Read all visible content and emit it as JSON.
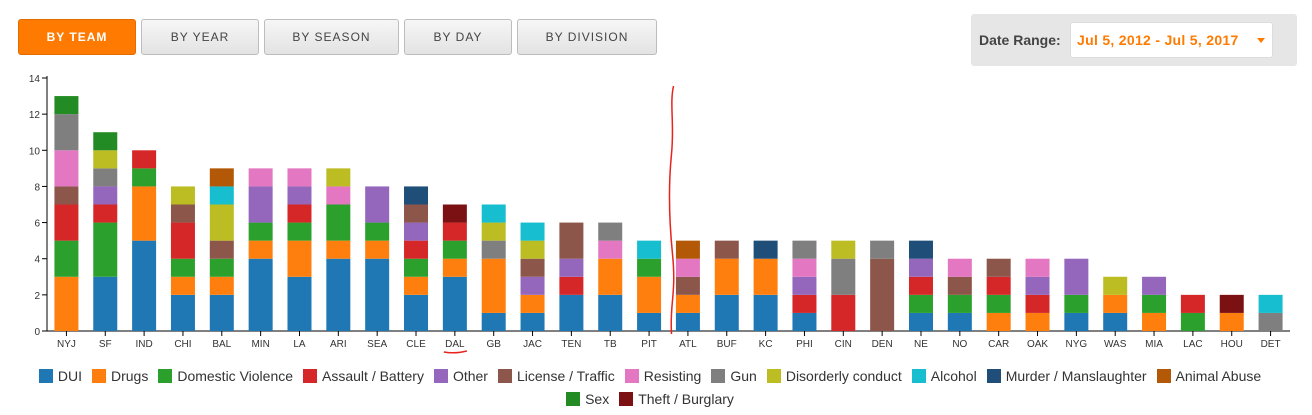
{
  "tabs": [
    {
      "label": "BY TEAM",
      "active": true
    },
    {
      "label": "BY YEAR",
      "active": false
    },
    {
      "label": "BY SEASON",
      "active": false
    },
    {
      "label": "BY DAY",
      "active": false
    },
    {
      "label": "BY DIVISION",
      "active": false
    }
  ],
  "date_range": {
    "label": "Date Range:",
    "value": "Jul 5, 2012 - Jul 5, 2017"
  },
  "chart_data": {
    "type": "bar",
    "stacked": true,
    "ylim": [
      0,
      14
    ],
    "yticks": [
      0,
      2,
      4,
      6,
      8,
      10,
      12,
      14
    ],
    "legend_position": "bottom",
    "categories": [
      "NYJ",
      "SF",
      "IND",
      "CHI",
      "BAL",
      "MIN",
      "LA",
      "ARI",
      "SEA",
      "CLE",
      "DAL",
      "GB",
      "JAC",
      "TEN",
      "TB",
      "PIT",
      "ATL",
      "BUF",
      "KC",
      "PHI",
      "CIN",
      "DEN",
      "NE",
      "NO",
      "CAR",
      "OAK",
      "NYG",
      "WAS",
      "MIA",
      "LAC",
      "HOU",
      "DET"
    ],
    "series": [
      {
        "name": "DUI",
        "color": "#1f77b4",
        "values": [
          0,
          3,
          5,
          2,
          2,
          4,
          3,
          4,
          4,
          2,
          3,
          1,
          1,
          2,
          2,
          1,
          1,
          2,
          2,
          1,
          0,
          0,
          1,
          1,
          0,
          0,
          1,
          1,
          0,
          0,
          0,
          0
        ]
      },
      {
        "name": "Drugs",
        "color": "#ff7f0e",
        "values": [
          3,
          0,
          3,
          1,
          1,
          1,
          2,
          1,
          1,
          1,
          1,
          3,
          1,
          0,
          2,
          2,
          1,
          2,
          2,
          0,
          0,
          0,
          0,
          0,
          1,
          1,
          0,
          1,
          1,
          0,
          1,
          0
        ]
      },
      {
        "name": "Domestic Violence",
        "color": "#2ca02c",
        "values": [
          2,
          3,
          1,
          1,
          1,
          1,
          1,
          2,
          1,
          1,
          1,
          0,
          0,
          0,
          0,
          1,
          0,
          0,
          0,
          0,
          0,
          0,
          1,
          1,
          1,
          0,
          1,
          0,
          1,
          1,
          0,
          0
        ]
      },
      {
        "name": "Assault / Battery",
        "color": "#d62728",
        "values": [
          2,
          1,
          1,
          2,
          0,
          0,
          1,
          0,
          0,
          1,
          1,
          0,
          0,
          1,
          0,
          0,
          0,
          0,
          0,
          1,
          2,
          0,
          1,
          0,
          1,
          1,
          0,
          0,
          0,
          1,
          0,
          0
        ]
      },
      {
        "name": "Other",
        "color": "#9467bd",
        "values": [
          0,
          1,
          0,
          0,
          0,
          2,
          1,
          0,
          2,
          1,
          0,
          0,
          1,
          1,
          0,
          0,
          0,
          0,
          0,
          1,
          0,
          0,
          1,
          0,
          0,
          1,
          2,
          0,
          1,
          0,
          0,
          0
        ]
      },
      {
        "name": "License / Traffic",
        "color": "#8c564b",
        "values": [
          1,
          0,
          0,
          1,
          1,
          0,
          0,
          0,
          0,
          1,
          0,
          0,
          1,
          2,
          0,
          0,
          1,
          1,
          0,
          0,
          0,
          4,
          0,
          1,
          1,
          0,
          0,
          0,
          0,
          0,
          0,
          0
        ]
      },
      {
        "name": "Resisting",
        "color": "#e377c2",
        "values": [
          2,
          0,
          0,
          0,
          0,
          1,
          1,
          1,
          0,
          0,
          0,
          0,
          0,
          0,
          1,
          0,
          1,
          0,
          0,
          1,
          0,
          0,
          0,
          1,
          0,
          1,
          0,
          0,
          0,
          0,
          0,
          0
        ]
      },
      {
        "name": "Gun",
        "color": "#7f7f7f",
        "values": [
          2,
          1,
          0,
          0,
          0,
          0,
          0,
          0,
          0,
          0,
          0,
          1,
          0,
          0,
          1,
          0,
          0,
          0,
          0,
          1,
          2,
          1,
          0,
          0,
          0,
          0,
          0,
          0,
          0,
          0,
          0,
          1
        ]
      },
      {
        "name": "Disorderly conduct",
        "color": "#bcbd22",
        "values": [
          0,
          1,
          0,
          1,
          2,
          0,
          0,
          1,
          0,
          0,
          0,
          1,
          1,
          0,
          0,
          0,
          0,
          0,
          0,
          0,
          1,
          0,
          0,
          0,
          0,
          0,
          0,
          1,
          0,
          0,
          0,
          0
        ]
      },
      {
        "name": "Alcohol",
        "color": "#17becf",
        "values": [
          0,
          0,
          0,
          0,
          1,
          0,
          0,
          0,
          0,
          0,
          0,
          1,
          1,
          0,
          0,
          1,
          0,
          0,
          0,
          0,
          0,
          0,
          0,
          0,
          0,
          0,
          0,
          0,
          0,
          0,
          0,
          1
        ]
      },
      {
        "name": "Murder / Manslaughter",
        "color": "#1f4e79",
        "values": [
          0,
          0,
          0,
          0,
          0,
          0,
          0,
          0,
          0,
          1,
          0,
          0,
          0,
          0,
          0,
          0,
          0,
          0,
          1,
          0,
          0,
          0,
          1,
          0,
          0,
          0,
          0,
          0,
          0,
          0,
          0,
          0
        ]
      },
      {
        "name": "Animal Abuse",
        "color": "#b35806",
        "values": [
          0,
          0,
          0,
          0,
          1,
          0,
          0,
          0,
          0,
          0,
          0,
          0,
          0,
          0,
          0,
          0,
          1,
          0,
          0,
          0,
          0,
          0,
          0,
          0,
          0,
          0,
          0,
          0,
          0,
          0,
          0,
          0
        ]
      },
      {
        "name": "Sex",
        "color": "#238b23",
        "values": [
          1,
          1,
          0,
          0,
          0,
          0,
          0,
          0,
          0,
          0,
          0,
          0,
          0,
          0,
          0,
          0,
          0,
          0,
          0,
          0,
          0,
          0,
          0,
          0,
          0,
          0,
          0,
          0,
          0,
          0,
          0,
          0
        ]
      },
      {
        "name": "Theft / Burglary",
        "color": "#7b1113",
        "values": [
          0,
          0,
          0,
          0,
          0,
          0,
          0,
          0,
          0,
          0,
          1,
          0,
          0,
          0,
          0,
          0,
          0,
          0,
          0,
          0,
          0,
          0,
          0,
          0,
          0,
          0,
          0,
          0,
          0,
          0,
          1,
          0
        ]
      }
    ]
  }
}
